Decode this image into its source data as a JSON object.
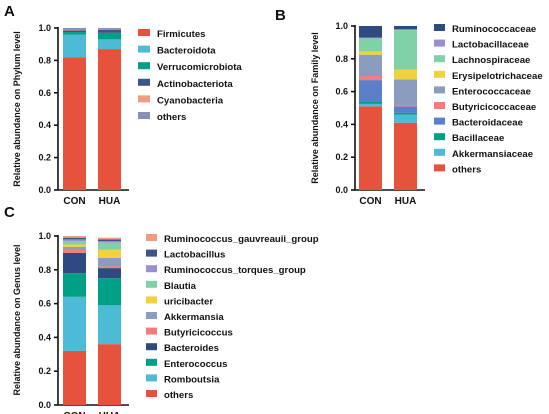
{
  "chart_data": [
    {
      "id": "A",
      "type": "bar",
      "stacked": true,
      "panel_label": "A",
      "categories": [
        "CON",
        "HUA"
      ],
      "ylabel": "Relative abundance on Phylum level",
      "ylim": [
        0,
        1.0
      ],
      "yticks": [
        "0.0",
        "0.2",
        "0.4",
        "0.6",
        "0.8",
        "1.0"
      ],
      "legend_position": "right",
      "series": [
        {
          "name": "Firmicutes",
          "color": "#E6533C",
          "values": [
            0.82,
            0.87
          ]
        },
        {
          "name": "Bacteroidota",
          "color": "#4DBBD5",
          "values": [
            0.14,
            0.06
          ]
        },
        {
          "name": "Verrucomicrobiota",
          "color": "#00A087",
          "values": [
            0.015,
            0.04
          ]
        },
        {
          "name": "Actinobacteriota",
          "color": "#3C5488",
          "values": [
            0.01,
            0.02
          ]
        },
        {
          "name": "Cyanobacteria",
          "color": "#F39B7F",
          "values": [
            0.003,
            0.002
          ]
        },
        {
          "name": "others",
          "color": "#8491B4",
          "values": [
            0.012,
            0.008
          ]
        }
      ]
    },
    {
      "id": "B",
      "type": "bar",
      "stacked": true,
      "panel_label": "B",
      "categories": [
        "CON",
        "HUA"
      ],
      "ylabel": "Relative abundance on Family level",
      "ylim": [
        0,
        1.0
      ],
      "yticks": [
        "0.0",
        "0.2",
        "0.4",
        "0.6",
        "0.8",
        "1.0"
      ],
      "legend_position": "right",
      "series": [
        {
          "name": "others",
          "color": "#E6533C",
          "values": [
            0.51,
            0.41
          ]
        },
        {
          "name": "Akkermansiaceae",
          "color": "#4DBBD5",
          "values": [
            0.015,
            0.05
          ]
        },
        {
          "name": "Bacillaceae",
          "color": "#00A087",
          "values": [
            0.015,
            0.01
          ]
        },
        {
          "name": "Bacteroidaceae",
          "color": "#5B7FC8",
          "values": [
            0.13,
            0.04
          ]
        },
        {
          "name": "Butyricicoccaceae",
          "color": "#F47C7C",
          "values": [
            0.025,
            0.005
          ]
        },
        {
          "name": "Enterococcaceae",
          "color": "#8C9CBF",
          "values": [
            0.13,
            0.16
          ]
        },
        {
          "name": "Erysipelotrichaceae",
          "color": "#F2D23C",
          "values": [
            0.02,
            0.06
          ]
        },
        {
          "name": "Lachnospiraceae",
          "color": "#7FD1A6",
          "values": [
            0.08,
            0.24
          ]
        },
        {
          "name": "Lactobacillaceae",
          "color": "#9A8FD0",
          "values": [
            0.005,
            0.005
          ]
        },
        {
          "name": "Ruminococcaceae",
          "color": "#2F4A80",
          "values": [
            0.07,
            0.02
          ]
        }
      ]
    },
    {
      "id": "C",
      "type": "bar",
      "stacked": true,
      "panel_label": "C",
      "categories": [
        "CON",
        "HUA"
      ],
      "ylabel": "Relative abundance on Genus level",
      "ylim": [
        0,
        1.0
      ],
      "yticks": [
        "0.0",
        "0.2",
        "0.4",
        "0.6",
        "0.8",
        "1.0"
      ],
      "legend_position": "right",
      "series": [
        {
          "name": "others",
          "color": "#E6533C",
          "values": [
            0.32,
            0.36
          ]
        },
        {
          "name": "Romboutsia",
          "color": "#4DBBD5",
          "values": [
            0.32,
            0.23
          ]
        },
        {
          "name": "Enterococcus",
          "color": "#00A087",
          "values": [
            0.14,
            0.16
          ]
        },
        {
          "name": "Bacteroides",
          "color": "#2F4A80",
          "values": [
            0.12,
            0.06
          ]
        },
        {
          "name": "Butyricicoccus",
          "color": "#F47C7C",
          "values": [
            0.02,
            0.01
          ]
        },
        {
          "name": "Akkermansia",
          "color": "#8C9CBF",
          "values": [
            0.015,
            0.05
          ]
        },
        {
          "name": "uricibacter",
          "color": "#F2D23C",
          "values": [
            0.015,
            0.05
          ]
        },
        {
          "name": "Blautia",
          "color": "#7FD1A6",
          "values": [
            0.02,
            0.04
          ]
        },
        {
          "name": "Ruminococcus_torques_group",
          "color": "#9A8FD0",
          "values": [
            0.01,
            0.01
          ]
        },
        {
          "name": "Lactobacillus",
          "color": "#3C5488",
          "values": [
            0.01,
            0.01
          ]
        },
        {
          "name": "Ruminococcus_gauvreauii_group",
          "color": "#F39B7F",
          "values": [
            0.01,
            0.01
          ]
        }
      ]
    }
  ]
}
